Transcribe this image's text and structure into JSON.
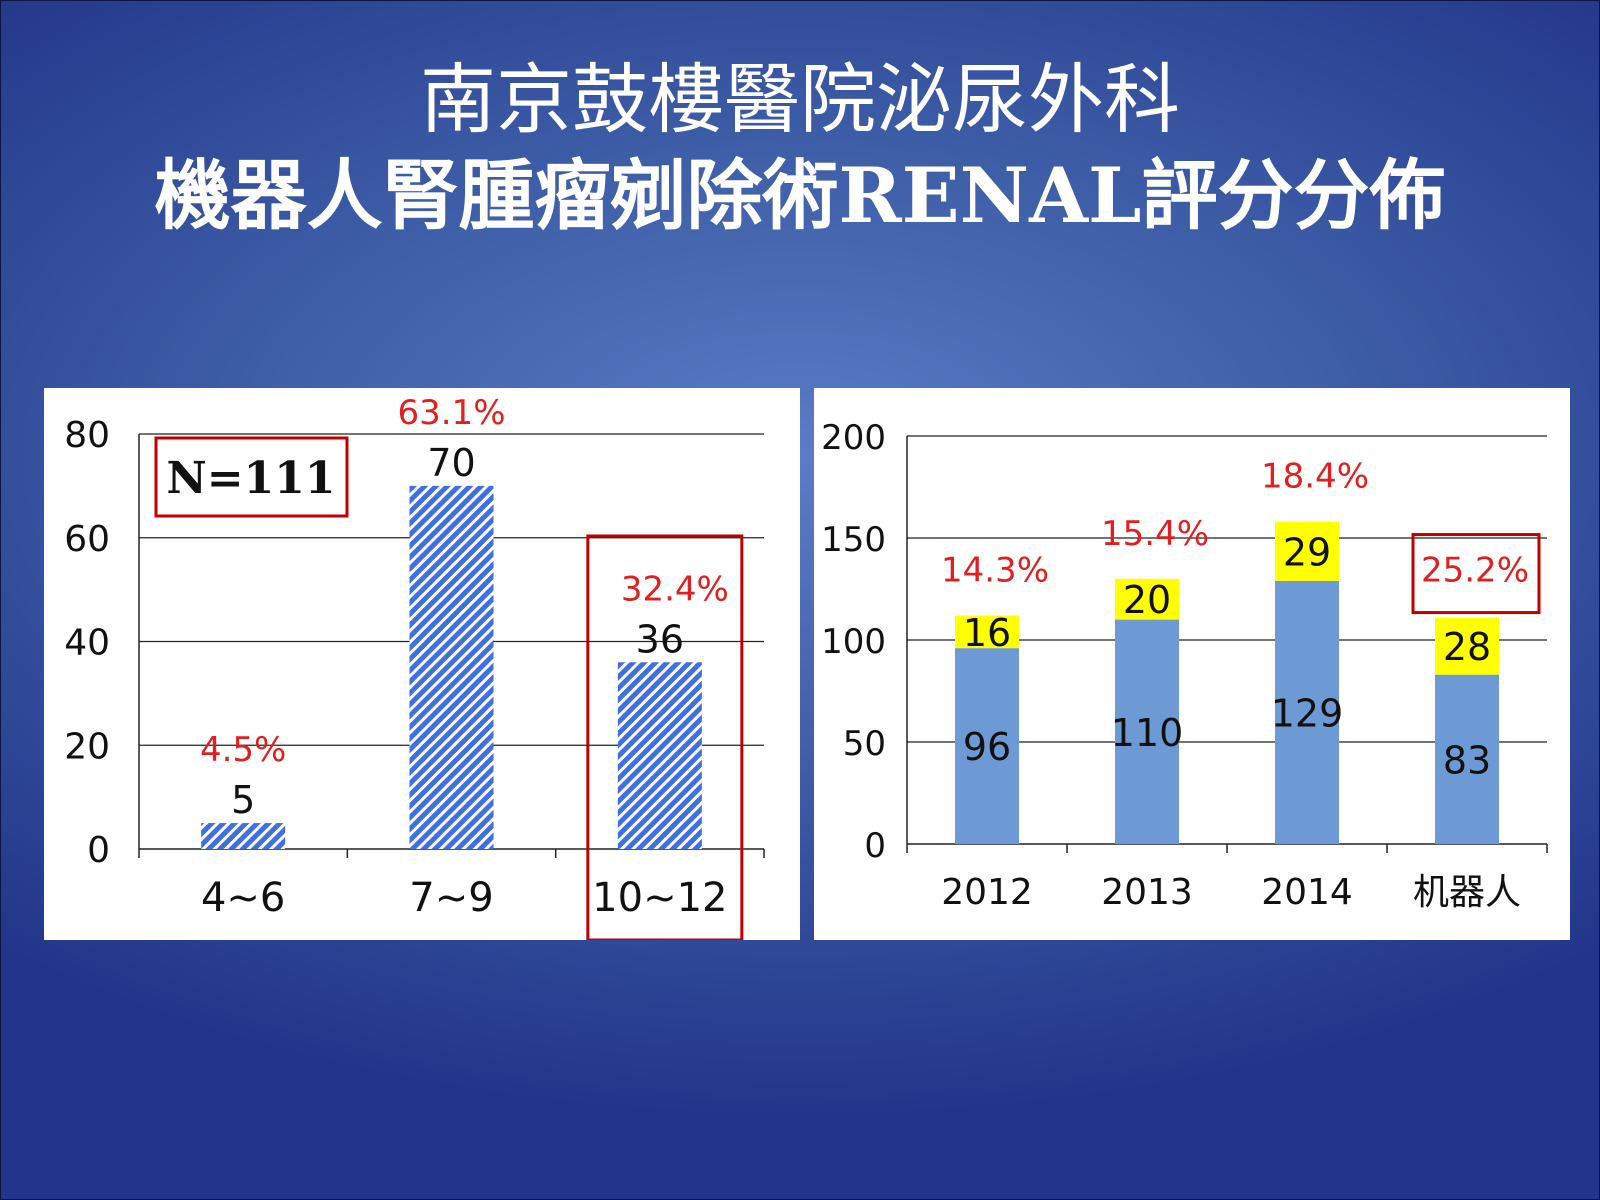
{
  "title_line1": "南京鼓樓醫院泌尿外科",
  "title_line2": "機器人腎腫瘤剜除術RENAL評分分佈",
  "chart_data": [
    {
      "type": "bar",
      "categories": [
        "4~6",
        "7~9",
        "10~12"
      ],
      "values": [
        5,
        70,
        36
      ],
      "percent_labels": [
        "4.5%",
        "63.1%",
        "32.4%"
      ],
      "ylim": [
        0,
        80
      ],
      "yticks": [
        "0",
        "20",
        "40",
        "60",
        "80"
      ],
      "annotation": "N=111",
      "highlighted_category": "10~12",
      "bar_color": "#3f6fe3",
      "bar_pattern": "diagonal-stripes",
      "percent_color": "#e02020",
      "box_color": "#c00000",
      "grid": true
    },
    {
      "type": "bar",
      "stacked": true,
      "categories": [
        "2012",
        "2013",
        "2014",
        "机器人"
      ],
      "series": [
        {
          "values": [
            96,
            110,
            129,
            83
          ],
          "color": "#6d9ad4"
        },
        {
          "values": [
            16,
            20,
            29,
            28
          ],
          "color": "#ffff00"
        }
      ],
      "percent_labels": [
        "14.3%",
        "15.4%",
        "18.4%",
        "25.2%"
      ],
      "highlighted_category": "机器人",
      "ylim": [
        0,
        200
      ],
      "yticks": [
        "0",
        "50",
        "100",
        "150",
        "200"
      ],
      "percent_color": "#e02020",
      "box_color": "#c00000",
      "grid": true
    }
  ]
}
